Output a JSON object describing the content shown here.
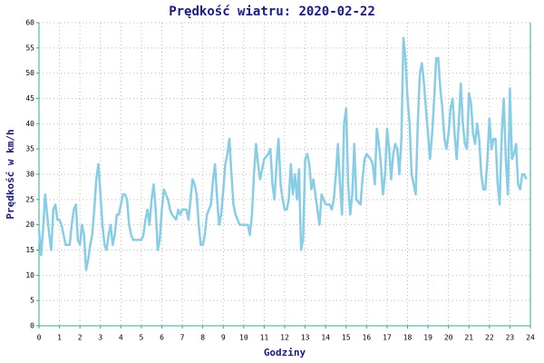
{
  "chart_data": {
    "type": "line",
    "title": "Prędkość wiatru: 2020-02-22",
    "x_label": "Godziny",
    "y_label": "Prędkość w km/h",
    "color": "#87cde6",
    "grid": true,
    "xlim": [
      0,
      24
    ],
    "xticks": [
      0,
      1,
      2,
      3,
      4,
      5,
      6,
      7,
      8,
      9,
      10,
      11,
      12,
      13,
      14,
      15,
      16,
      17,
      18,
      19,
      20,
      21,
      22,
      23,
      24
    ],
    "ylim": [
      0,
      60
    ],
    "yticks": [
      0,
      5,
      10,
      15,
      20,
      25,
      30,
      35,
      40,
      45,
      50,
      55,
      60
    ],
    "x": [
      0.0,
      0.1,
      0.2,
      0.3,
      0.4,
      0.5,
      0.6,
      0.7,
      0.8,
      0.9,
      1.0,
      1.1,
      1.3,
      1.5,
      1.6,
      1.7,
      1.8,
      1.9,
      2.0,
      2.1,
      2.2,
      2.3,
      2.4,
      2.5,
      2.6,
      2.7,
      2.8,
      2.9,
      3.0,
      3.1,
      3.2,
      3.3,
      3.4,
      3.5,
      3.6,
      3.7,
      3.8,
      3.9,
      4.0,
      4.1,
      4.2,
      4.3,
      4.4,
      4.5,
      4.6,
      4.8,
      5.0,
      5.1,
      5.2,
      5.3,
      5.4,
      5.5,
      5.6,
      5.7,
      5.8,
      5.9,
      6.0,
      6.1,
      6.2,
      6.3,
      6.4,
      6.5,
      6.7,
      6.8,
      6.9,
      7.0,
      7.2,
      7.3,
      7.4,
      7.5,
      7.6,
      7.7,
      7.8,
      7.9,
      8.0,
      8.1,
      8.2,
      8.4,
      8.5,
      8.6,
      8.7,
      8.8,
      8.9,
      9.0,
      9.1,
      9.2,
      9.3,
      9.4,
      9.5,
      9.6,
      9.8,
      10.0,
      10.2,
      10.3,
      10.4,
      10.5,
      10.6,
      10.7,
      10.8,
      10.9,
      11.0,
      11.2,
      11.3,
      11.4,
      11.5,
      11.6,
      11.7,
      11.8,
      11.9,
      12.0,
      12.1,
      12.2,
      12.3,
      12.4,
      12.5,
      12.6,
      12.7,
      12.8,
      12.9,
      13.0,
      13.1,
      13.2,
      13.3,
      13.4,
      13.5,
      13.6,
      13.7,
      13.8,
      14.0,
      14.2,
      14.3,
      14.4,
      14.5,
      14.6,
      14.7,
      14.8,
      14.9,
      15.0,
      15.1,
      15.2,
      15.3,
      15.4,
      15.5,
      15.7,
      15.8,
      15.9,
      16.0,
      16.2,
      16.3,
      16.4,
      16.5,
      16.6,
      16.7,
      16.8,
      16.9,
      17.0,
      17.1,
      17.2,
      17.3,
      17.4,
      17.5,
      17.6,
      17.7,
      17.8,
      17.9,
      18.0,
      18.1,
      18.2,
      18.4,
      18.5,
      18.6,
      18.7,
      18.8,
      18.9,
      19.0,
      19.1,
      19.2,
      19.3,
      19.4,
      19.5,
      19.6,
      19.7,
      19.8,
      19.9,
      20.0,
      20.1,
      20.2,
      20.3,
      20.4,
      20.5,
      20.6,
      20.7,
      20.8,
      20.9,
      21.0,
      21.1,
      21.2,
      21.3,
      21.4,
      21.5,
      21.6,
      21.7,
      21.8,
      21.9,
      22.0,
      22.1,
      22.2,
      22.3,
      22.4,
      22.5,
      22.6,
      22.7,
      22.8,
      22.9,
      23.0,
      23.1,
      23.2,
      23.3,
      23.4,
      23.5,
      23.6,
      23.7,
      23.8
    ],
    "values": [
      19,
      14,
      19,
      26,
      22,
      18,
      15,
      23,
      24,
      21,
      21,
      20,
      16,
      16,
      20,
      23,
      24,
      17,
      16,
      20,
      18,
      11,
      13,
      16,
      18,
      23,
      29,
      32,
      26,
      20,
      16,
      15,
      18,
      20,
      16,
      18,
      22,
      22,
      24,
      26,
      26,
      25,
      20,
      18,
      17,
      17,
      17,
      18,
      21,
      23,
      20,
      25,
      28,
      23,
      15,
      17,
      23,
      27,
      26,
      25,
      23,
      22,
      21,
      23,
      22,
      23,
      23,
      21,
      25,
      29,
      28,
      26,
      20,
      16,
      16,
      18,
      22,
      24,
      29,
      32,
      25,
      20,
      22,
      27,
      32,
      34,
      37,
      30,
      24,
      22,
      20,
      20,
      20,
      18,
      22,
      30,
      36,
      32,
      29,
      31,
      33,
      34,
      35,
      28,
      25,
      32,
      37,
      28,
      25,
      23,
      23,
      25,
      32,
      26,
      30,
      25,
      31,
      15,
      17,
      33,
      34,
      32,
      27,
      29,
      26,
      23,
      20,
      26,
      24,
      24,
      23,
      25,
      30,
      36,
      28,
      22,
      40,
      43,
      28,
      22,
      26,
      36,
      25,
      24,
      29,
      33,
      34,
      33,
      32,
      28,
      39,
      36,
      32,
      26,
      30,
      39,
      35,
      29,
      34,
      36,
      35,
      30,
      37,
      57,
      53,
      45,
      40,
      30,
      26,
      40,
      50,
      52,
      48,
      43,
      38,
      33,
      38,
      45,
      53,
      53,
      47,
      43,
      37,
      35,
      38,
      43,
      45,
      38,
      33,
      40,
      48,
      40,
      36,
      35,
      46,
      44,
      38,
      36,
      40,
      37,
      30,
      27,
      27,
      33,
      41,
      35,
      37,
      37,
      28,
      24,
      38,
      45,
      33,
      26,
      47,
      33,
      34,
      36,
      28,
      27,
      30,
      30,
      29
    ]
  }
}
